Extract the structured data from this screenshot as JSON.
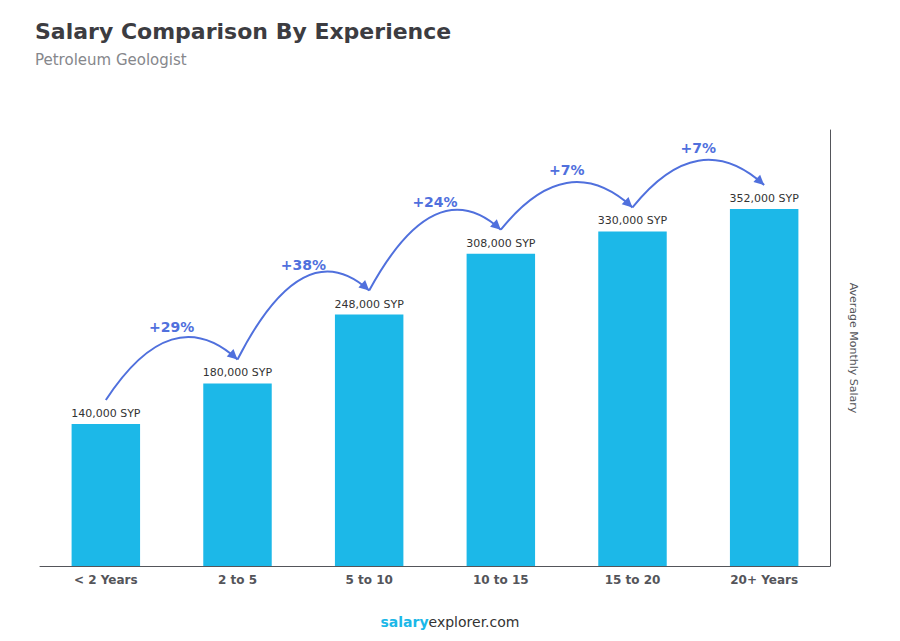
{
  "chart_data": {
    "type": "bar",
    "title": "Salary Comparison By Experience",
    "subtitle": "Petroleum Geologist",
    "y_label": "Average Monthly Salary",
    "categories": [
      "< 2 Years",
      "2 to 5",
      "5 to 10",
      "10 to 15",
      "15 to 20",
      "20+ Years"
    ],
    "values": [
      140000,
      180000,
      248000,
      308000,
      330000,
      352000
    ],
    "value_labels": [
      "140,000 SYP",
      "180,000 SYP",
      "248,000 SYP",
      "308,000 SYP",
      "330,000 SYP",
      "352,000 SYP"
    ],
    "data_labels": true,
    "pct_labels": [
      "+29%",
      "+38%",
      "+24%",
      "+7%",
      "+7%"
    ],
    "footer": [
      "salary",
      "explorer.com"
    ],
    "color": "#1CB8E8",
    "ylim": [
      0,
      430000
    ],
    "grid": false,
    "tick_labels": "x"
  }
}
